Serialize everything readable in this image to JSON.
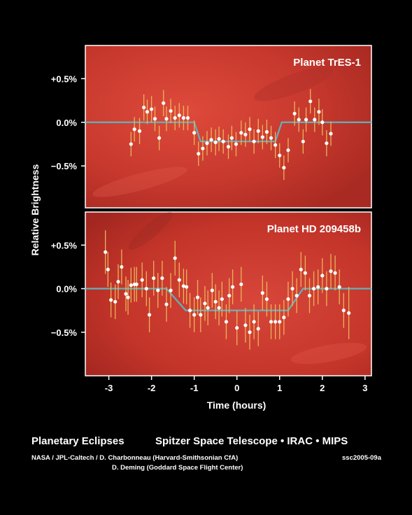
{
  "chart_data": {
    "type": "scatter",
    "ylabel": "Relative Brightness",
    "xlabel": "Time (hours)",
    "xlim": [
      -3.55,
      3.15
    ],
    "xticks": [
      "-3",
      "-2",
      "-1",
      "0",
      "1",
      "2",
      "3"
    ],
    "x_tick_values": [
      -3,
      -2,
      -1,
      0,
      1,
      2,
      3
    ],
    "grid": false,
    "panels": [
      {
        "title": "Planet TrES-1",
        "ylim": [
          -0.98,
          0.88
        ],
        "yticks": [
          "+0.5%",
          "0.0%",
          "−0.5%"
        ],
        "y_tick_values": [
          0.5,
          0.0,
          -0.5
        ],
        "points": {
          "x": [
            -2.48,
            -2.4,
            -2.28,
            -2.18,
            -2.1,
            -2.0,
            -1.92,
            -1.82,
            -1.72,
            -1.65,
            -1.55,
            -1.45,
            -1.35,
            -1.25,
            -1.15,
            -1.0,
            -0.9,
            -0.8,
            -0.7,
            -0.6,
            -0.5,
            -0.42,
            -0.32,
            -0.2,
            -0.12,
            -0.02,
            0.1,
            0.2,
            0.3,
            0.4,
            0.5,
            0.6,
            0.7,
            0.8,
            0.9,
            1.0,
            1.1,
            1.2,
            1.35,
            1.45,
            1.55,
            1.62,
            1.72,
            1.82,
            1.92,
            2.0,
            2.1,
            2.2
          ],
          "y": [
            -0.25,
            -0.08,
            -0.1,
            0.17,
            0.12,
            0.15,
            0.04,
            -0.18,
            0.22,
            0.04,
            0.13,
            0.05,
            0.08,
            0.05,
            0.05,
            -0.12,
            -0.36,
            -0.3,
            -0.24,
            -0.2,
            -0.23,
            -0.19,
            -0.22,
            -0.28,
            -0.18,
            -0.25,
            -0.12,
            -0.14,
            -0.08,
            -0.22,
            -0.1,
            -0.17,
            -0.11,
            -0.18,
            -0.26,
            -0.38,
            -0.52,
            -0.32,
            0.1,
            0.03,
            -0.22,
            0.03,
            0.24,
            0.03,
            0.12,
            0.0,
            -0.24,
            -0.13
          ],
          "err": [
            0.14,
            0.14,
            0.15,
            0.15,
            0.14,
            0.15,
            0.14,
            0.14,
            0.15,
            0.14,
            0.14,
            0.14,
            0.14,
            0.14,
            0.14,
            0.14,
            0.14,
            0.14,
            0.14,
            0.14,
            0.15,
            0.14,
            0.14,
            0.14,
            0.14,
            0.14,
            0.14,
            0.14,
            0.14,
            0.14,
            0.14,
            0.14,
            0.14,
            0.14,
            0.15,
            0.14,
            0.14,
            0.14,
            0.14,
            0.14,
            0.14,
            0.14,
            0.14,
            0.14,
            0.15,
            0.15,
            0.15,
            0.14
          ]
        },
        "model": {
          "x": [
            -3.55,
            -1.0,
            -0.85,
            0.9,
            1.05,
            3.15
          ],
          "y": [
            0,
            0,
            -0.22,
            -0.22,
            0,
            0
          ]
        }
      },
      {
        "title": "Planet HD 209458b",
        "ylim": [
          -1.0,
          0.88
        ],
        "yticks": [
          "+0.5%",
          "0.0%",
          "−0.5%"
        ],
        "y_tick_values": [
          0.5,
          0.0,
          -0.5
        ],
        "points": {
          "x": [
            -3.08,
            -3.02,
            -2.95,
            -2.85,
            -2.78,
            -2.7,
            -2.6,
            -2.55,
            -2.48,
            -2.4,
            -2.35,
            -2.22,
            -2.12,
            -2.05,
            -1.95,
            -1.85,
            -1.75,
            -1.65,
            -1.55,
            -1.45,
            -1.35,
            -1.25,
            -1.18,
            -1.1,
            -1.0,
            -0.92,
            -0.85,
            -0.75,
            -0.68,
            -0.58,
            -0.5,
            -0.42,
            -0.35,
            -0.25,
            -0.18,
            -0.1,
            0.0,
            0.1,
            0.2,
            0.3,
            0.4,
            0.5,
            0.6,
            0.7,
            0.8,
            0.9,
            1.0,
            1.1,
            1.2,
            1.3,
            1.4,
            1.5,
            1.6,
            1.7,
            1.8,
            1.9,
            2.0,
            2.1,
            2.2,
            2.3,
            2.4,
            2.5,
            2.62
          ],
          "y": [
            0.42,
            0.22,
            -0.13,
            -0.15,
            0.08,
            0.25,
            -0.06,
            -0.1,
            0.04,
            0.05,
            0.05,
            0.1,
            0.0,
            -0.3,
            0.12,
            -0.02,
            0.12,
            -0.18,
            -0.02,
            0.35,
            0.1,
            0.03,
            0.02,
            -0.25,
            -0.3,
            -0.1,
            -0.3,
            -0.17,
            -0.22,
            -0.02,
            -0.15,
            -0.22,
            -0.12,
            -0.38,
            -0.08,
            0.02,
            -0.45,
            0.05,
            -0.42,
            -0.5,
            -0.38,
            -0.46,
            -0.05,
            -0.12,
            -0.38,
            -0.38,
            -0.38,
            -0.33,
            -0.12,
            0.0,
            -0.08,
            0.22,
            0.18,
            -0.08,
            0.0,
            0.02,
            0.15,
            0.0,
            0.2,
            0.18,
            0.02,
            -0.25,
            -0.28
          ],
          "err": [
            0.25,
            0.2,
            0.2,
            0.2,
            0.2,
            0.2,
            0.2,
            0.2,
            0.2,
            0.2,
            0.2,
            0.2,
            0.2,
            0.2,
            0.2,
            0.2,
            0.2,
            0.2,
            0.2,
            0.2,
            0.2,
            0.2,
            0.2,
            0.2,
            0.2,
            0.2,
            0.2,
            0.2,
            0.2,
            0.2,
            0.2,
            0.2,
            0.2,
            0.2,
            0.2,
            0.2,
            0.2,
            0.2,
            0.2,
            0.2,
            0.2,
            0.2,
            0.2,
            0.2,
            0.2,
            0.2,
            0.2,
            0.2,
            0.2,
            0.2,
            0.2,
            0.2,
            0.2,
            0.2,
            0.2,
            0.2,
            0.2,
            0.2,
            0.2,
            0.2,
            0.2,
            0.2,
            0.3
          ]
        },
        "model": {
          "x": [
            -3.55,
            -1.65,
            -1.2,
            1.2,
            1.55,
            3.15
          ],
          "y": [
            0,
            0,
            -0.25,
            -0.25,
            0,
            0
          ]
        }
      }
    ]
  },
  "colors": {
    "background": "#000000",
    "panel_red": "#c8372e",
    "panel_red_light": "#d9463a",
    "model_line": "#5fb3bd",
    "error_bar": "#e8b45a",
    "point": "#ffffff",
    "text": "#ffffff"
  },
  "caption": {
    "title": "Planetary Eclipses",
    "mission": "Spitzer Space Telescope • IRAC • MIPS",
    "credit_line1": "NASA / JPL-Caltech / D. Charbonneau (Harvard-Smithsonian CfA)",
    "credit_line2": "D. Deming (Goddard Space Flight Center)",
    "image_id": "ssc2005-09a"
  }
}
